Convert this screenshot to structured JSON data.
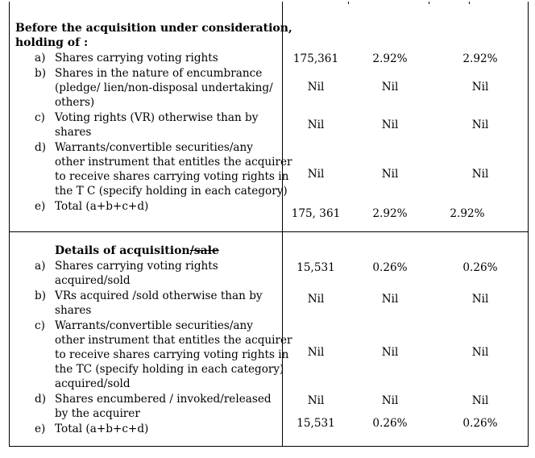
{
  "before": {
    "heading_line1": "Before the acquisition under consideration,",
    "heading_line2": "holding of :",
    "items": [
      {
        "marker": "a)",
        "lines": [
          "Shares carrying voting rights"
        ],
        "values": [
          "175,361",
          "2.92%",
          "2.92%"
        ]
      },
      {
        "marker": "b)",
        "lines": [
          "Shares in the nature of encumbrance",
          "(pledge/ lien/non-disposal undertaking/",
          "others)"
        ],
        "values": [
          "Nil",
          "Nil",
          "Nil"
        ]
      },
      {
        "marker": "c)",
        "lines": [
          "Voting rights (VR) otherwise than by",
          "shares"
        ],
        "values": [
          "Nil",
          "Nil",
          "Nil"
        ]
      },
      {
        "marker": "d)",
        "lines": [
          "Warrants/convertible securities/any",
          "other instrument that entitles the acquirer",
          "to receive shares carrying voting rights in",
          "the T C (specify holding in each category)"
        ],
        "values": [
          "Nil",
          "Nil",
          "Nil"
        ]
      },
      {
        "marker": "e)",
        "lines": [
          "Total (a+b+c+d)"
        ],
        "values": [
          "175, 361",
          "2.92%",
          "2.92%"
        ]
      }
    ]
  },
  "acquisition": {
    "heading_main": "Details of acquisition",
    "heading_struck": "/sale",
    "items": [
      {
        "marker": "a)",
        "lines": [
          "Shares carrying voting rights",
          "acquired/sold"
        ],
        "values": [
          "15,531",
          "0.26%",
          "0.26%"
        ]
      },
      {
        "marker": "b)",
        "lines": [
          "VRs acquired /sold otherwise than by",
          "shares"
        ],
        "values": [
          "Nil",
          "Nil",
          "Nil"
        ]
      },
      {
        "marker": "c)",
        "lines": [
          "Warrants/convertible securities/any",
          "other instrument that entitles the acquirer",
          "to receive shares carrying voting rights in",
          "the TC (specify holding in each category)",
          "acquired/sold"
        ],
        "values": [
          "Nil",
          "Nil",
          "Nil"
        ]
      },
      {
        "marker": "d)",
        "lines": [
          "Shares encumbered / invoked/released",
          "by the acquirer"
        ],
        "values": [
          "Nil",
          "Nil",
          "Nil"
        ]
      },
      {
        "marker": "e)",
        "lines": [
          "Total (a+b+c+d)"
        ],
        "values": [
          "15,531",
          "0.26%",
          "0.26%"
        ]
      }
    ]
  }
}
